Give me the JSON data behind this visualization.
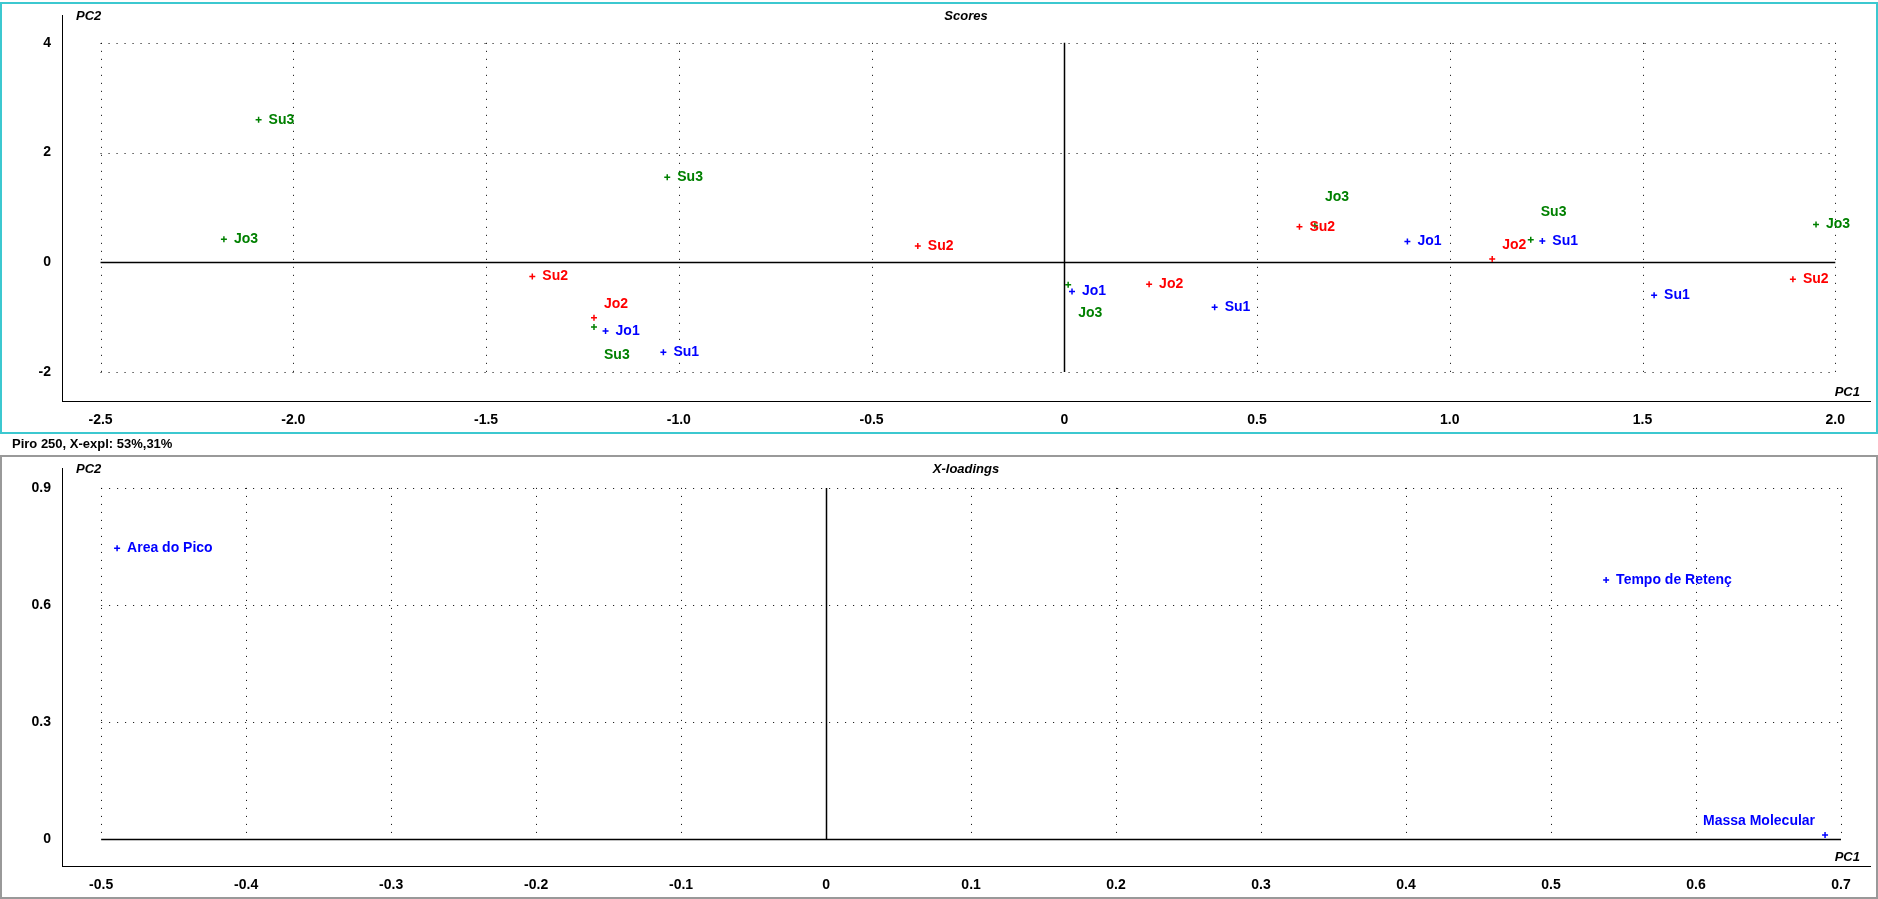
{
  "chart_data": [
    {
      "type": "scatter",
      "title": "Scores",
      "xlabel": "PC1",
      "ylabel": "PC2",
      "annotations": [
        "Piro 250, X-expl: 53%,31%"
      ],
      "xlim": [
        -2.6,
        2.09
      ],
      "ylim": [
        -2.53,
        4.5
      ],
      "xticks": [
        {
          "value": -2.5,
          "label": "-2.5"
        },
        {
          "value": -2,
          "label": "-2.0"
        },
        {
          "value": -1.5,
          "label": "-1.5"
        },
        {
          "value": -1,
          "label": "-1.0"
        },
        {
          "value": -0.5,
          "label": "-0.5"
        },
        0,
        0.5,
        {
          "value": 1,
          "label": "1.0"
        },
        1.5,
        {
          "value": 2,
          "label": "2.0"
        }
      ],
      "yticks": [
        -2,
        0,
        2,
        4
      ],
      "grid": true,
      "marker": "cross",
      "series": [
        {
          "color": "#0000ff",
          "x": [
            -1.19,
            -1.04,
            0.02,
            0.39,
            0.89,
            1.24,
            1.53
          ],
          "values": [
            -1.25,
            -1.64,
            -0.53,
            -0.82,
            0.38,
            0.39,
            -0.6
          ],
          "value_labels": [
            "Jo1",
            "Su1",
            "Jo1",
            "Su1",
            "Jo1",
            "Su1",
            "Su1"
          ]
        },
        {
          "color": "#ff0000",
          "x": [
            -1.38,
            -1.22,
            -0.38,
            0.22,
            0.61,
            1.11,
            1.89
          ],
          "values": [
            -0.26,
            -1.01,
            0.3,
            -0.4,
            0.65,
            0.06,
            -0.31
          ],
          "value_labels": [
            "Su2",
            "Jo2",
            "Su2",
            "Jo2",
            "Su2",
            "Jo2",
            "Su2"
          ]
        },
        {
          "color": "#008000",
          "x": [
            -2.18,
            -2.09,
            -1.22,
            -1.03,
            0.01,
            0.65,
            1.21,
            1.95
          ],
          "values": [
            0.42,
            2.6,
            -1.18,
            1.55,
            -0.41,
            0.67,
            0.41,
            0.69
          ],
          "value_labels": [
            "Jo3",
            "Su3",
            "Su3",
            "Su3",
            "Jo3",
            "Jo3",
            "Su3",
            "Jo3"
          ]
        }
      ]
    },
    {
      "type": "scatter",
      "title": "X-loadings",
      "xlabel": "PC1",
      "ylabel": "PC2",
      "xlim": [
        -0.527,
        0.72
      ],
      "ylim": [
        -0.07,
        0.95
      ],
      "xticks": [
        -0.5,
        -0.4,
        -0.3,
        -0.2,
        -0.1,
        0,
        0.1,
        0.2,
        0.3,
        0.4,
        0.5,
        0.6,
        0.7
      ],
      "yticks": [
        0,
        0.3,
        0.6,
        0.9
      ],
      "grid": true,
      "marker": "cross",
      "series": [
        {
          "color": "#0000ff",
          "x": [
            -0.489,
            0.538,
            0.689
          ],
          "values": [
            0.745,
            0.664,
            0.01
          ],
          "value_labels": [
            "Area do Pico",
            "Tempo de Retenç",
            "Massa Molecular"
          ]
        }
      ]
    }
  ]
}
